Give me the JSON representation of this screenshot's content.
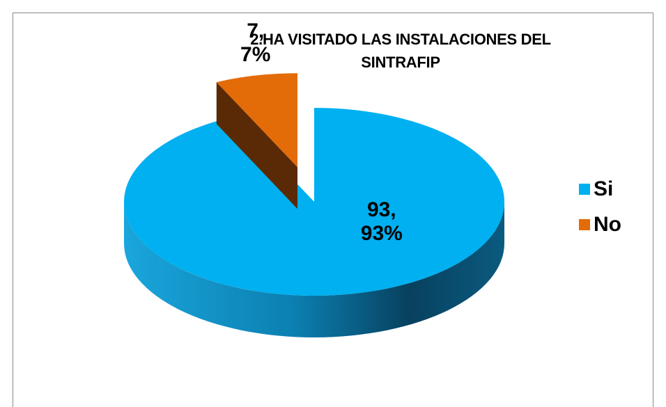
{
  "chart_data": {
    "type": "pie",
    "title": "2.HA VISITADO LAS INSTALACIONES DEL SINTRAFIP",
    "categories": [
      "Si",
      "No"
    ],
    "values": [
      93,
      7
    ],
    "value_labels": [
      "93, 93%",
      "7, 7%"
    ],
    "colors": [
      "#00B0F0",
      "#E36C09"
    ],
    "legend": "right",
    "exploded": [
      false,
      true
    ]
  }
}
